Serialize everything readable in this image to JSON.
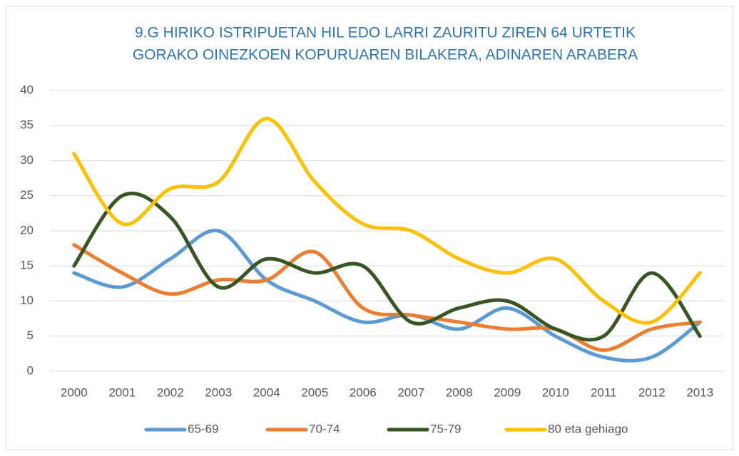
{
  "chart_data": {
    "type": "line",
    "title": [
      "9.G  HIRIKO ISTRIPUETAN HIL EDO LARRI ZAURITU ZIREN 64 URTETIK",
      "GORAKO OINEZKOEN KOPURUAREN BILAKERA, ADINAREN ARABERA"
    ],
    "categories": [
      "2000",
      "2001",
      "2002",
      "2003",
      "2004",
      "2005",
      "2006",
      "2007",
      "2008",
      "2009",
      "2010",
      "2011",
      "2012",
      "2013"
    ],
    "series": [
      {
        "name": "65-69",
        "color": "#5b9bd5",
        "values": [
          14,
          12,
          16,
          20,
          13,
          10,
          7,
          8,
          6,
          9,
          5,
          2,
          2,
          7
        ]
      },
      {
        "name": "70-74",
        "color": "#ed7d31",
        "values": [
          18,
          14,
          11,
          13,
          13,
          17,
          9,
          8,
          7,
          6,
          6,
          3,
          6,
          7
        ]
      },
      {
        "name": "75-79",
        "color": "#375623",
        "values": [
          15,
          25,
          22,
          12,
          16,
          14,
          15,
          7,
          9,
          10,
          6,
          5,
          14,
          5
        ]
      },
      {
        "name": "80 eta gehiago",
        "color": "#ffc000",
        "values": [
          31,
          21,
          26,
          27,
          36,
          27,
          21,
          20,
          16,
          14,
          16,
          10,
          7,
          14
        ]
      }
    ],
    "ylim": [
      0,
      40
    ],
    "yticks": [
      0,
      5,
      10,
      15,
      20,
      25,
      30,
      35,
      40
    ],
    "grid": true,
    "legend": "bottom"
  }
}
